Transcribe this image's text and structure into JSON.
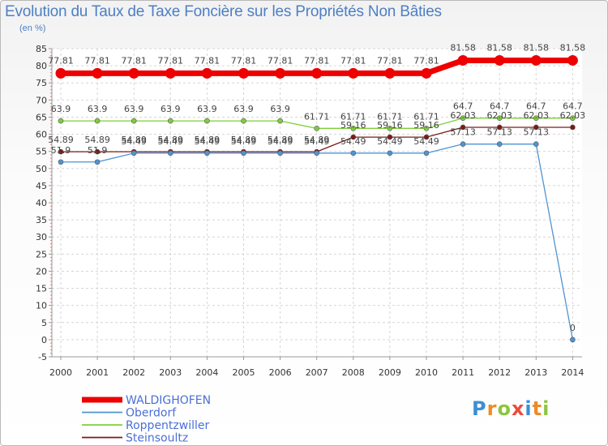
{
  "title": "Evolution du Taux de Taxe Foncière sur les Propriétés Non Bâties",
  "subtitle": "(en %)",
  "logo": {
    "letters": [
      "P",
      "r",
      "o",
      "x",
      "i",
      "t",
      "i"
    ],
    "colors": [
      "#3b8fd4",
      "#f08a24",
      "#8cc63f",
      "#e84c3d",
      "#3b8fd4",
      "#f08a24",
      "#8cc63f"
    ]
  },
  "chart_data": {
    "type": "line",
    "title": "Evolution du Taux de Taxe Foncière sur les Propriétés Non Bâties",
    "ylabel": "(en %)",
    "xlabel": "",
    "ylim": [
      -5,
      85
    ],
    "yticks": [
      -5,
      0,
      5,
      10,
      15,
      20,
      25,
      30,
      35,
      40,
      45,
      50,
      55,
      60,
      65,
      70,
      75,
      80,
      85
    ],
    "grid": true,
    "x": [
      "2000",
      "2001",
      "2002",
      "2003",
      "2004",
      "2005",
      "2006",
      "2007",
      "2008",
      "2009",
      "2010",
      "2011",
      "2012",
      "2013",
      "2014"
    ],
    "series": [
      {
        "name": "WALDIGHOFEN",
        "color": "#ee0000",
        "values": [
          77.81,
          77.81,
          77.81,
          77.81,
          77.81,
          77.81,
          77.81,
          77.81,
          77.81,
          77.81,
          77.81,
          81.58,
          81.58,
          81.58,
          81.58
        ],
        "labels": [
          "77.81",
          "77.81",
          "77.81",
          "77.81",
          "77.81",
          "77.81",
          "77.81",
          "77.81",
          "77.81",
          "77.81",
          "77.81",
          "81.58",
          "81.58",
          "81.58",
          "81.58"
        ]
      },
      {
        "name": "Oberdorf",
        "color": "#4f94d4",
        "values": [
          51.9,
          51.9,
          54.49,
          54.49,
          54.49,
          54.49,
          54.49,
          54.49,
          54.49,
          54.49,
          54.49,
          57.13,
          57.13,
          57.13,
          0
        ],
        "labels": [
          "51.9",
          "51.9",
          "54.49",
          "54.49",
          "54.49",
          "54.49",
          "54.49",
          "54.49",
          "54.49",
          "54.49",
          "54.49",
          "57.13",
          "57.13",
          "57.13",
          "0"
        ]
      },
      {
        "name": "Roppentzwiller",
        "color": "#7fcf3a",
        "values": [
          63.9,
          63.9,
          63.9,
          63.9,
          63.9,
          63.9,
          63.9,
          61.71,
          61.71,
          61.71,
          61.71,
          64.7,
          64.7,
          64.7,
          64.7
        ],
        "labels": [
          "63.9",
          "63.9",
          "63.9",
          "63.9",
          "63.9",
          "63.9",
          "63.9",
          "61.71",
          "61.71",
          "61.71",
          "61.71",
          "64.7",
          "64.7",
          "64.7",
          "64.7"
        ]
      },
      {
        "name": "Steinsoultz",
        "color": "#7b1a1a",
        "values": [
          54.89,
          54.89,
          54.89,
          54.89,
          54.89,
          54.89,
          54.89,
          54.89,
          59.16,
          59.16,
          59.16,
          62.03,
          62.03,
          62.03,
          62.03
        ],
        "labels": [
          "54.89",
          "54.89",
          "54.89",
          "54.89",
          "54.89",
          "54.89",
          "54.89",
          "54.89",
          "59.16",
          "59.16",
          "59.16",
          "62.03",
          "62.03",
          "62.03",
          "62.03"
        ]
      }
    ],
    "legend": "bottom-left"
  }
}
